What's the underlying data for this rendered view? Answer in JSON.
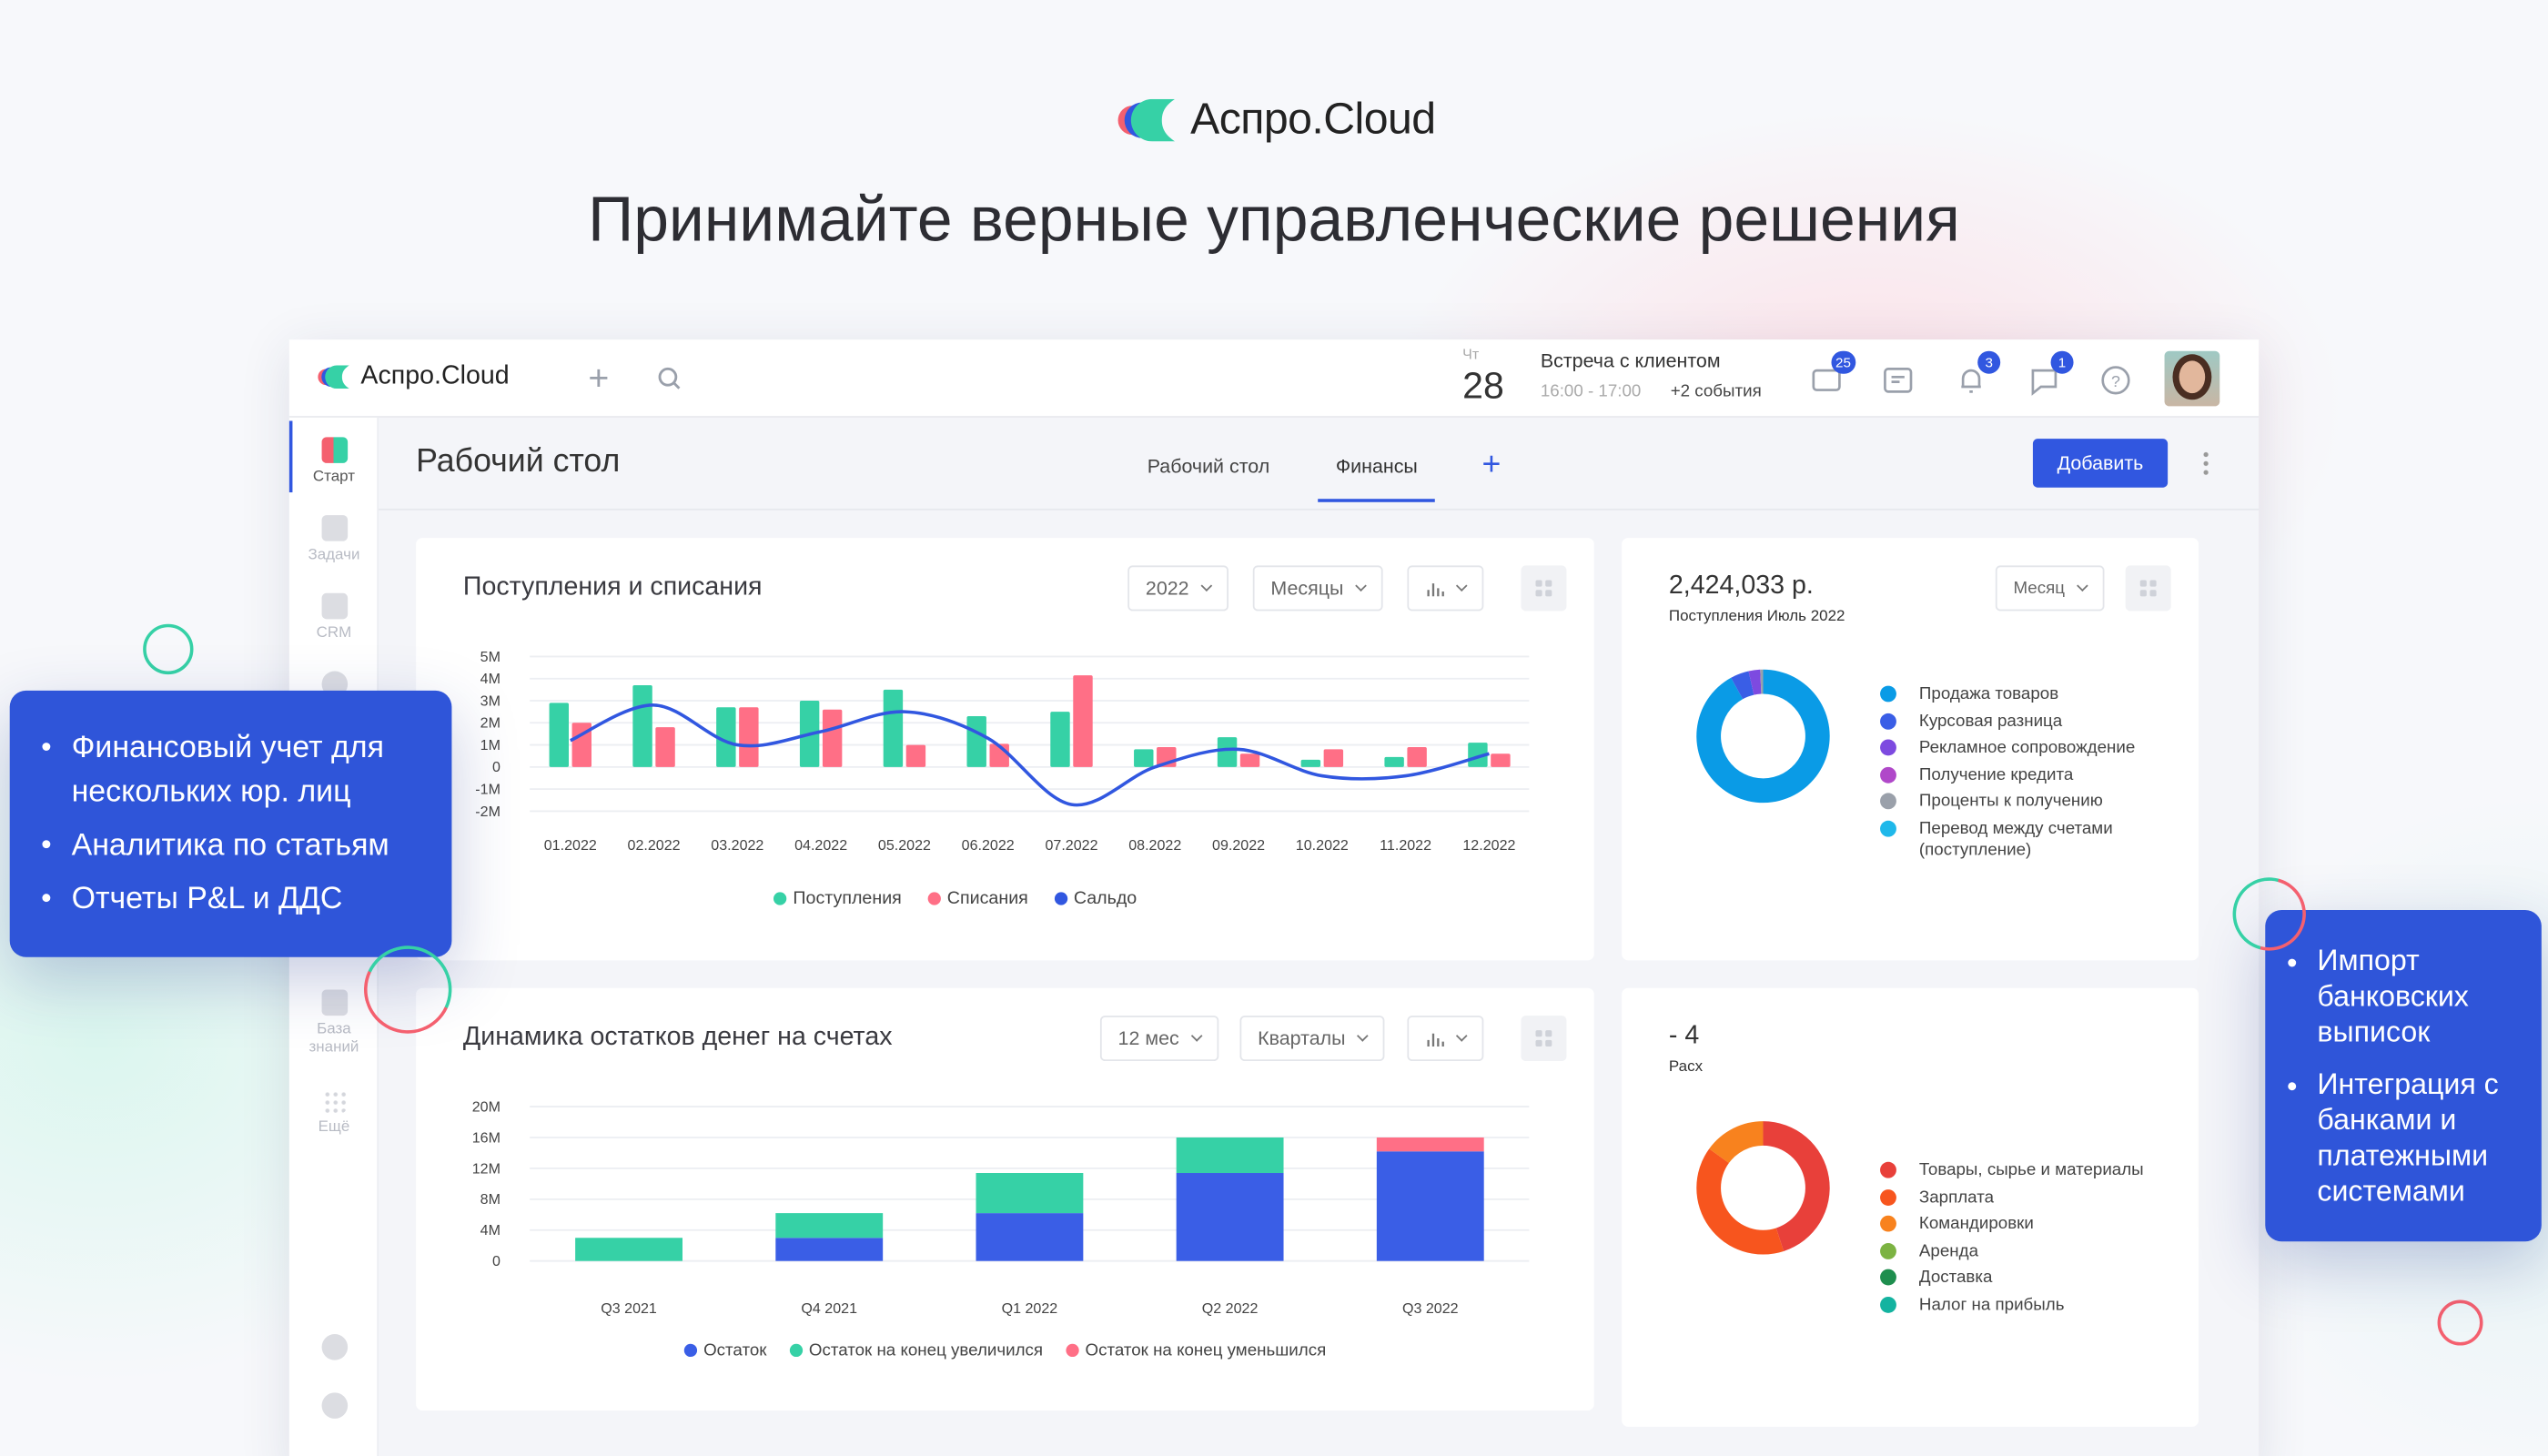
{
  "brand": {
    "name": "Аспро.Cloud"
  },
  "headline": "Принимайте верные управленческие решения",
  "app": {
    "logo": "Аспро.Cloud",
    "calendar": {
      "weekday": "Чт",
      "day": "28",
      "event": "Встреча с клиентом",
      "time": "16:00 - 17:00",
      "more": "+2 события"
    },
    "badges": {
      "mail": "25",
      "notifications": "3",
      "messages": "1"
    },
    "sidebar": [
      {
        "label": "Старт"
      },
      {
        "label": "Задачи"
      },
      {
        "label": "CRM"
      },
      {
        "label": "База знаний"
      },
      {
        "label": "Ещё"
      }
    ],
    "page_title": "Рабочий стол",
    "tabs": [
      {
        "label": "Рабочий стол",
        "active": false
      },
      {
        "label": "Финансы",
        "active": true
      }
    ],
    "add_button": "Добавить",
    "accent": "#3157e0"
  },
  "cards": {
    "income": {
      "title": "Поступления и списания",
      "filters": [
        "2022",
        "Месяцы"
      ]
    },
    "income_pie": {
      "amount": "2,424,033 р.",
      "subtitle": "Поступления Июль 2022",
      "period": "Месяц"
    },
    "balances": {
      "title": "Динамика остатков денег на счетах",
      "filters": [
        "12 мес",
        "Кварталы"
      ]
    },
    "expense_pie": {
      "amount_fragment": "- 4",
      "subtitle_fragment": "Расх"
    }
  },
  "chart_data": [
    {
      "type": "bar",
      "title": "Поступления и списания",
      "categories": [
        "01.2022",
        "02.2022",
        "03.2022",
        "04.2022",
        "05.2022",
        "06.2022",
        "07.2022",
        "08.2022",
        "09.2022",
        "10.2022",
        "11.2022",
        "12.2022"
      ],
      "yticks": [
        "5M",
        "4M",
        "3M",
        "2M",
        "1M",
        "0",
        "-1M",
        "-2M"
      ],
      "ylim": [
        -2,
        5
      ],
      "grid": true,
      "legend": "bottom",
      "series": [
        {
          "name": "Поступления",
          "kind": "bar",
          "color": "#36d1a6",
          "values": [
            2.9,
            3.7,
            2.7,
            3.0,
            3.5,
            2.3,
            2.5,
            0.8,
            1.35,
            0.33,
            0.45,
            1.1
          ]
        },
        {
          "name": "Списания",
          "kind": "bar",
          "color": "#ff6f86",
          "values": [
            2.0,
            1.8,
            2.7,
            2.6,
            1.0,
            1.05,
            4.15,
            0.9,
            0.6,
            0.8,
            0.9,
            0.6
          ]
        },
        {
          "name": "Сальдо",
          "kind": "line",
          "color": "#3157e0",
          "values": [
            1.2,
            2.8,
            1.0,
            1.6,
            2.5,
            1.3,
            -1.7,
            0.0,
            0.8,
            -0.4,
            -0.4,
            0.6
          ]
        }
      ]
    },
    {
      "type": "bar",
      "stacked": true,
      "title": "Динамика остатков денег на счетах",
      "categories": [
        "Q3 2021",
        "Q4 2021",
        "Q1 2022",
        "Q2 2022",
        "Q3 2022"
      ],
      "yticks": [
        "20M",
        "16M",
        "12M",
        "8M",
        "4M",
        "0"
      ],
      "ylim": [
        0,
        20
      ],
      "grid": true,
      "legend": "bottom",
      "series": [
        {
          "name": "Остаток",
          "color": "#3a5ee6",
          "values": [
            0,
            3.0,
            6.2,
            11.4,
            14.2
          ]
        },
        {
          "name": "Остаток на конец увеличился",
          "color": "#36d1a6",
          "values": [
            3.0,
            3.2,
            5.2,
            4.6,
            0
          ]
        },
        {
          "name": "Остаток на конец уменьшился",
          "color": "#ff6f86",
          "values": [
            0,
            0,
            0,
            0,
            1.8
          ]
        }
      ]
    },
    {
      "type": "pie",
      "donut": true,
      "title": "Поступления Июль 2022",
      "legend": "right",
      "slices": [
        {
          "label": "Продажа товаров",
          "value": 92,
          "color": "#0a9be6"
        },
        {
          "label": "Курсовая разница",
          "value": 4.5,
          "color": "#3a5ee6"
        },
        {
          "label": "Рекламное сопровождение",
          "value": 2.8,
          "color": "#7d4ae0"
        },
        {
          "label": "Получение кредита",
          "value": 0,
          "color": "#b048c9"
        },
        {
          "label": "Проценты к получению",
          "value": 0.7,
          "color": "#9aa0aa"
        },
        {
          "label": "Перевод между счетами (поступление)",
          "value": 0,
          "color": "#1fb8ea"
        }
      ]
    },
    {
      "type": "pie",
      "donut": true,
      "legend": "right",
      "slices": [
        {
          "label": "Товары, сырье и материалы",
          "value": 45,
          "color": "#e8403a"
        },
        {
          "label": "Зарплата",
          "value": 40,
          "color": "#f7551e"
        },
        {
          "label": "Командировки",
          "value": 15,
          "color": "#f8821e"
        },
        {
          "label": "Аренда",
          "value": 0,
          "color": "#7cb342"
        },
        {
          "label": "Доставка",
          "value": 0,
          "color": "#1e8e4e"
        },
        {
          "label": "Налог на прибыль",
          "value": 0,
          "color": "#14b3a0"
        }
      ]
    }
  ],
  "callouts": {
    "left": [
      "Финансовый учет для нескольких юр. лиц",
      "Аналитика по статьям",
      "Отчеты P&L и ДДС"
    ],
    "right": [
      "Импорт банковских выписок",
      "Интеграция с банками и платежными системами"
    ]
  }
}
